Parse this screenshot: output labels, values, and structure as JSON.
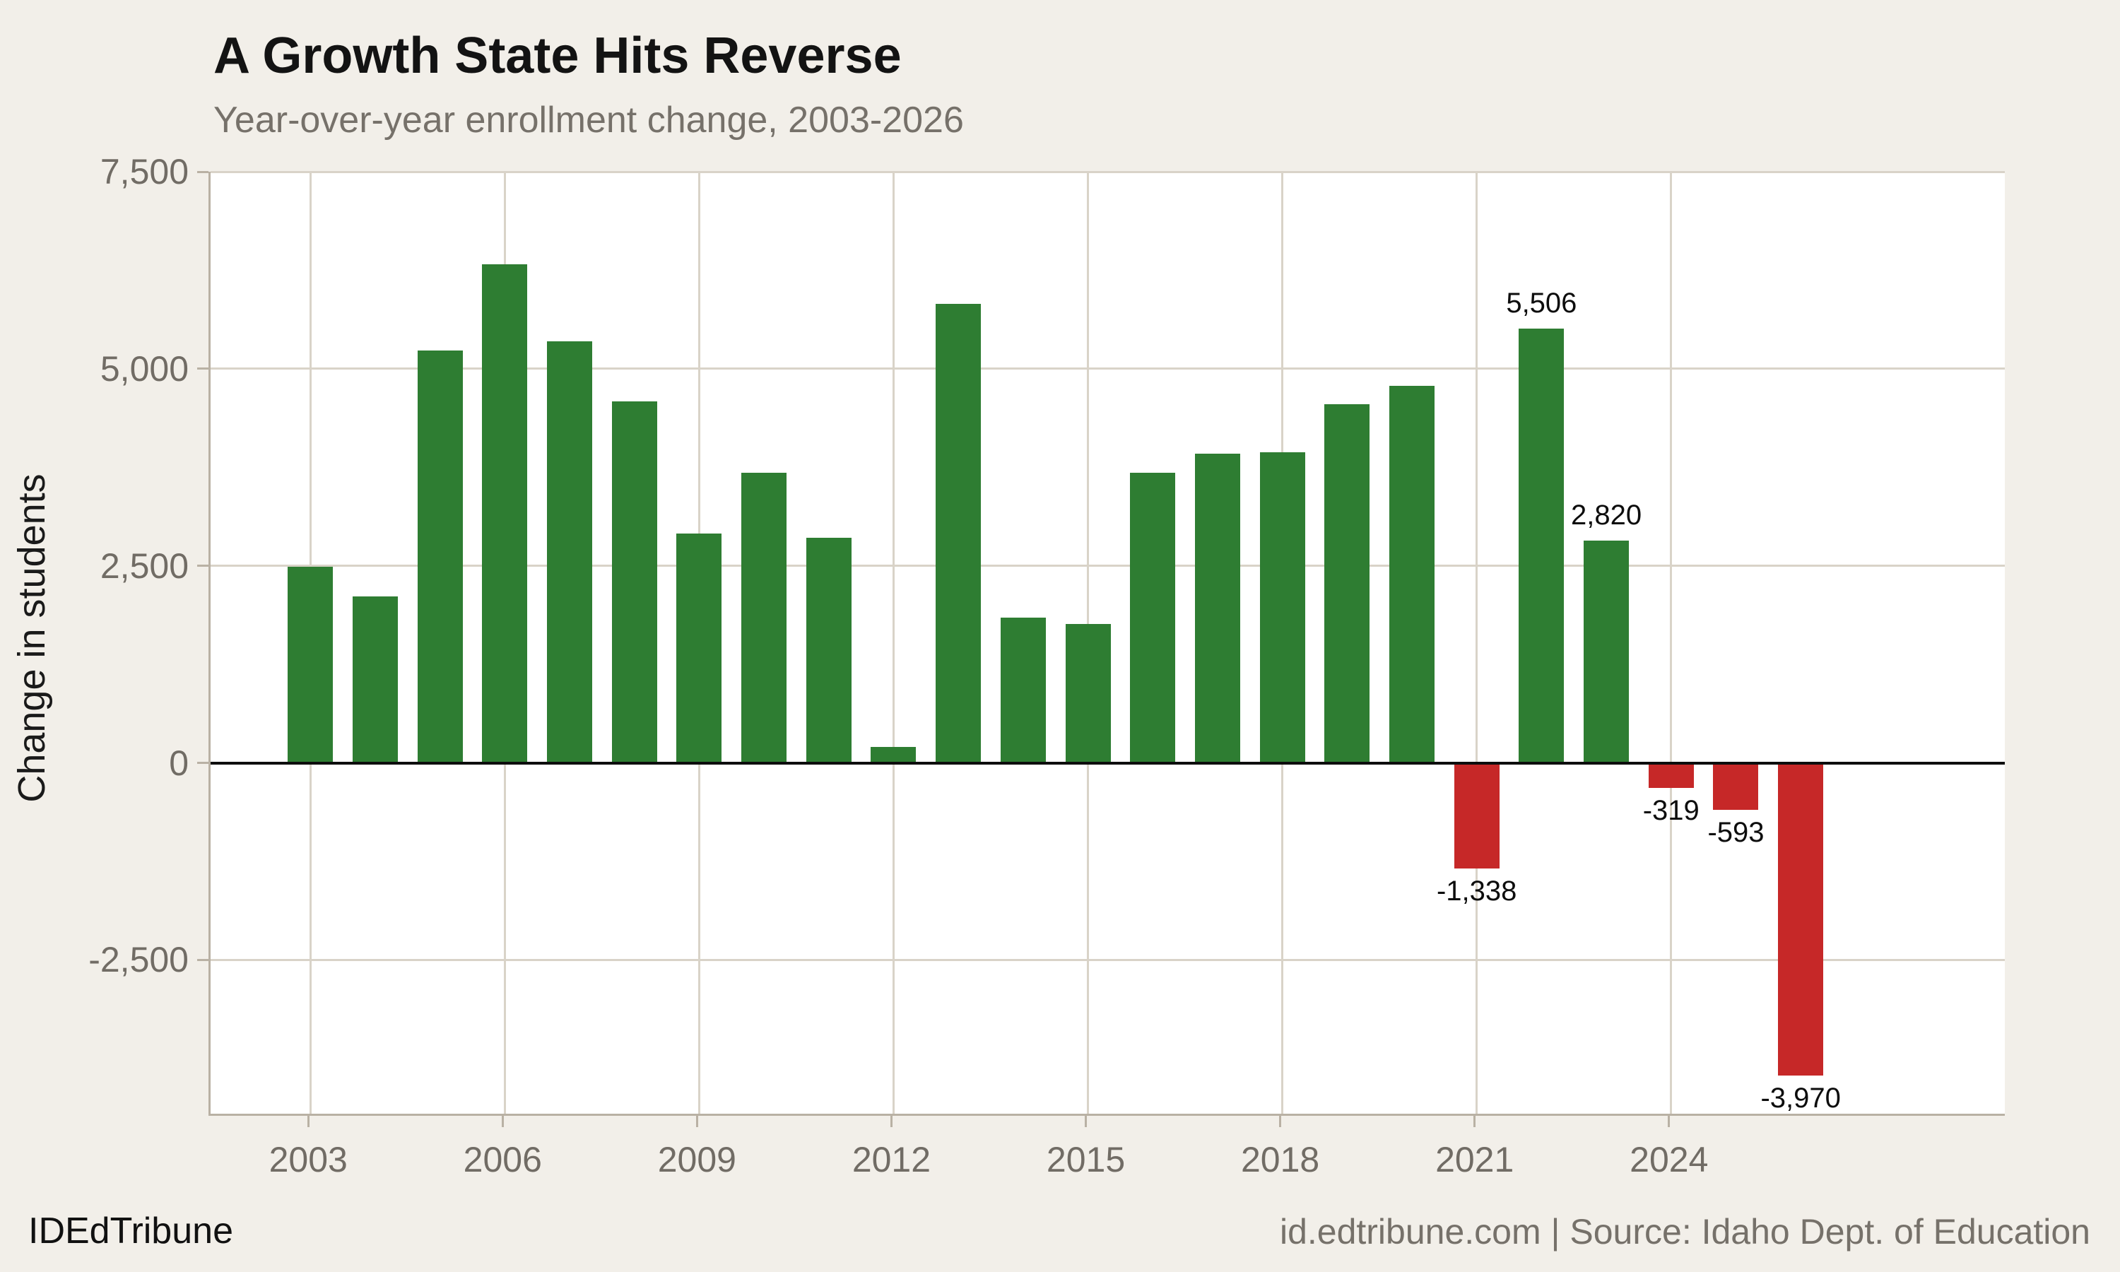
{
  "header": {
    "title": "A Growth State Hits Reverse",
    "subtitle": "Year-over-year enrollment change, 2003-2026"
  },
  "footer": {
    "brand": "IDEdTribune",
    "source": "id.edtribune.com | Source: Idaho Dept. of Education"
  },
  "chart_data": {
    "type": "bar",
    "title": "A Growth State Hits Reverse",
    "subtitle": "Year-over-year enrollment change, 2003-2026",
    "xlabel": "",
    "ylabel": "Change in students",
    "x": [
      2003,
      2004,
      2005,
      2006,
      2007,
      2008,
      2009,
      2010,
      2011,
      2012,
      2013,
      2014,
      2015,
      2016,
      2017,
      2018,
      2019,
      2020,
      2021,
      2022,
      2023,
      2024,
      2025,
      2026
    ],
    "values": [
      2490,
      2110,
      5230,
      6330,
      5350,
      4590,
      2910,
      3680,
      2860,
      200,
      5820,
      1840,
      1760,
      3680,
      3920,
      3940,
      4550,
      4780,
      -1338,
      5506,
      2820,
      -319,
      -593,
      -3970
    ],
    "data_labels": {
      "2021": "-1,338",
      "2022": "5,506",
      "2023": "2,820",
      "2024": "-319",
      "2025": "-593",
      "2026": "-3,970"
    },
    "yticks": [
      {
        "value": 7500,
        "label": "7,500"
      },
      {
        "value": 5000,
        "label": "5,000"
      },
      {
        "value": 2500,
        "label": "2,500"
      },
      {
        "value": 0,
        "label": "0"
      },
      {
        "value": -2500,
        "label": "-2,500"
      }
    ],
    "xticks": [
      2003,
      2006,
      2009,
      2012,
      2015,
      2018,
      2021,
      2024
    ],
    "ylim": [
      -4450,
      7500
    ],
    "xlim": [
      2001.46,
      2029.15
    ],
    "grid": true,
    "legend": "none",
    "colors": {
      "positive": "#2e7d32",
      "negative": "#c62828",
      "background": "#f2efe9",
      "plot_background": "#ffffff",
      "gridline": "#d9d3c8",
      "axis_line": "#b9b1a4",
      "zero_line": "#0d0d0d"
    }
  }
}
